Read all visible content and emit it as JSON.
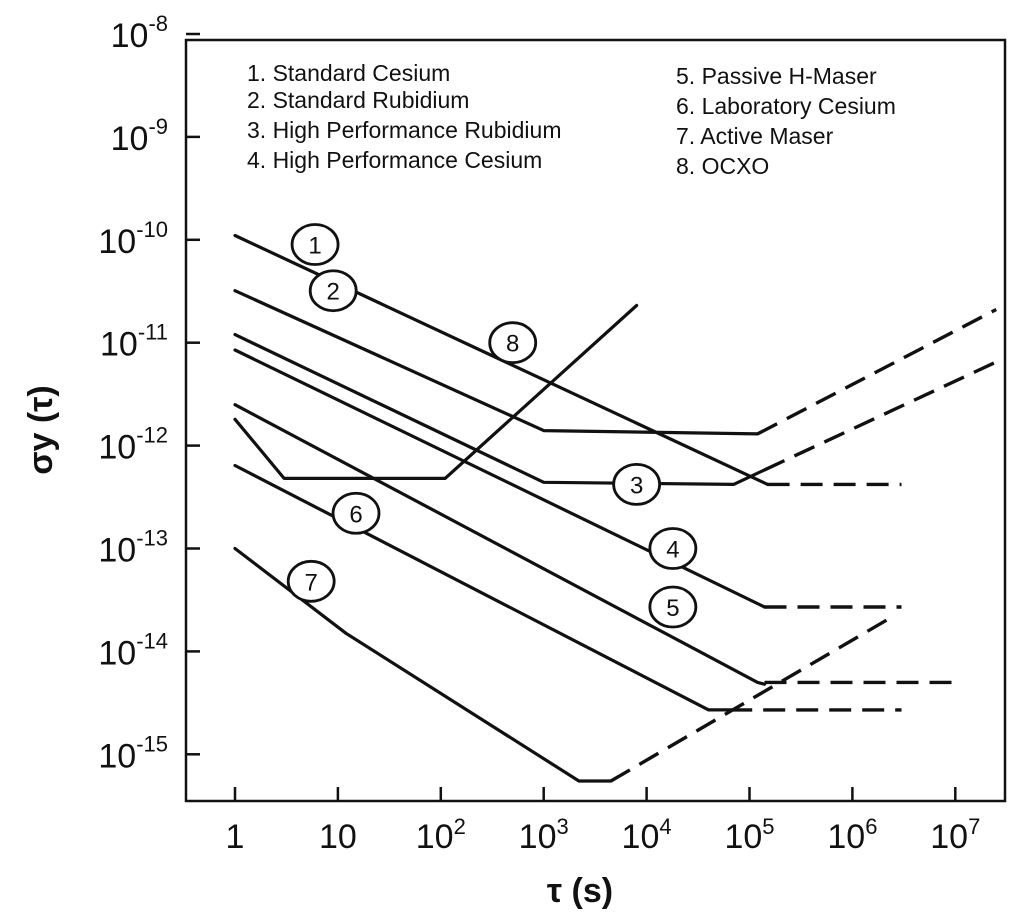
{
  "chart_data": {
    "type": "line",
    "title": "",
    "xlabel": "τ (s)",
    "ylabel": "σy (τ)",
    "xscale": "log",
    "yscale": "log",
    "xlim": [
      0.3,
      100000000.0
    ],
    "ylim": [
      1e-16,
      1e-08
    ],
    "x_ticks": [
      {
        "base": "1",
        "exp": ""
      },
      {
        "base": "10",
        "exp": ""
      },
      {
        "base": "10",
        "exp": "2"
      },
      {
        "base": "10",
        "exp": "3"
      },
      {
        "base": "10",
        "exp": "4"
      },
      {
        "base": "10",
        "exp": "5"
      },
      {
        "base": "10",
        "exp": "6"
      },
      {
        "base": "10",
        "exp": "7"
      }
    ],
    "y_ticks": [
      {
        "base": "10",
        "exp": "-8"
      },
      {
        "base": "10",
        "exp": "-9"
      },
      {
        "base": "10",
        "exp": "-10"
      },
      {
        "base": "10",
        "exp": "-11"
      },
      {
        "base": "10",
        "exp": "-12"
      },
      {
        "base": "10",
        "exp": "-13"
      },
      {
        "base": "10",
        "exp": "-14"
      },
      {
        "base": "10",
        "exp": "-15"
      }
    ],
    "legend_position": "top",
    "legend": [
      "1.  Standard Cesium",
      "2.  Standard Rubidium",
      "3.  High Performance Rubidium",
      "4.  High Performance Cesium",
      "5.  Passive H-Maser",
      "6.  Laboratory Cesium",
      "7.  Active Maser",
      "8.  OCXO"
    ],
    "series": [
      {
        "marker": "1",
        "marker_at": [
          6,
          9e-11
        ],
        "solid": [
          [
            1,
            1.1e-10
          ],
          [
            150000.0,
            4.2e-13
          ]
        ],
        "dashed": [
          [
            150000.0,
            4.2e-13
          ],
          [
            3000000.0,
            4.2e-13
          ]
        ]
      },
      {
        "marker": "2",
        "marker_at": [
          9,
          3.2e-11
        ],
        "solid": [
          [
            1,
            3.2e-11
          ],
          [
            1000,
            1.4e-12
          ],
          [
            120000.0,
            1.3e-12
          ]
        ],
        "dashed": [
          [
            120000.0,
            1.3e-12
          ],
          [
            25000000.0,
            2.1e-11
          ]
        ]
      },
      {
        "marker": "3",
        "marker_at": [
          8000,
          4.2e-13
        ],
        "solid": [
          [
            1,
            1.2e-11
          ],
          [
            1000,
            4.4e-13
          ],
          [
            70000.0,
            4.2e-13
          ],
          [
            140000.0,
            5.8e-13
          ]
        ],
        "dashed": [
          [
            140000.0,
            5.8e-13
          ],
          [
            25000000.0,
            6.5e-12
          ]
        ]
      },
      {
        "marker": "4",
        "marker_at": [
          18000,
          1e-13
        ],
        "solid": [
          [
            1,
            8.5e-12
          ],
          [
            140000.0,
            2.7e-14
          ]
        ],
        "dashed": [
          [
            140000.0,
            2.7e-14
          ],
          [
            3000000.0,
            2.7e-14
          ]
        ]
      },
      {
        "marker": "5",
        "marker_at": [
          18000,
          2.7e-14
        ],
        "solid": [
          [
            1,
            2.5e-12
          ],
          [
            120000.0,
            5e-15
          ],
          [
            140000.0,
            4.8e-15
          ]
        ],
        "dashed": [
          [
            140000.0,
            5e-15
          ],
          [
            10000000.0,
            5e-15
          ]
        ]
      },
      {
        "marker": "6",
        "marker_at": [
          15,
          2.2e-13
        ],
        "solid": [
          [
            1,
            6.4e-13
          ],
          [
            40000.0,
            2.7e-15
          ],
          [
            65000.0,
            2.7e-15
          ]
        ],
        "dashed": [
          [
            65000.0,
            2.7e-15
          ],
          [
            3000000.0,
            2.7e-15
          ]
        ]
      },
      {
        "marker": "7",
        "marker_at": [
          5.5,
          4.8e-14
        ],
        "solid": [
          [
            1,
            1e-13
          ],
          [
            12,
            1.5e-14
          ],
          [
            2200,
            5.5e-16
          ],
          [
            4500,
            5.5e-16
          ]
        ],
        "dashed": [
          [
            4500,
            5.5e-16
          ],
          [
            2500000.0,
            2.2e-14
          ]
        ]
      },
      {
        "marker": "8",
        "marker_at": [
          500,
          1e-11
        ],
        "solid": [
          [
            1,
            1.8e-12
          ],
          [
            3,
            4.8e-13
          ],
          [
            110,
            4.8e-13
          ],
          [
            8000,
            2.3e-11
          ]
        ],
        "dashed": []
      }
    ]
  }
}
